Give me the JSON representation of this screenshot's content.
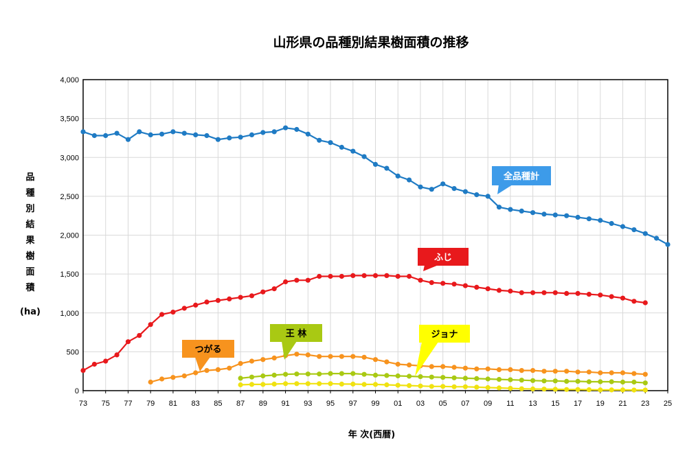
{
  "chart_data": {
    "type": "line",
    "title": "山形県の品種別結果樹面積の推移",
    "xlabel": "年 次(西暦)",
    "ylabel_chars": [
      "品",
      "種",
      "別",
      "結",
      "果",
      "樹",
      "面",
      "積"
    ],
    "ylabel_unit": "(ha)",
    "xlim": [
      1973,
      2025
    ],
    "ylim": [
      0,
      4000
    ],
    "grid": true,
    "x_tick_labels": [
      "73",
      "75",
      "77",
      "79",
      "81",
      "83",
      "85",
      "87",
      "89",
      "91",
      "93",
      "95",
      "97",
      "99",
      "01",
      "03",
      "05",
      "07",
      "09",
      "11",
      "13",
      "15",
      "17",
      "19",
      "21",
      "23",
      "25"
    ],
    "y_tick_labels": [
      "0",
      "500",
      "1,000",
      "1,500",
      "2,000",
      "2,500",
      "3,000",
      "3,500",
      "4,000"
    ],
    "series": [
      {
        "name": "全品種計",
        "color": "#1f7bc4",
        "x": [
          1973,
          1974,
          1975,
          1976,
          1977,
          1978,
          1979,
          1980,
          1981,
          1982,
          1983,
          1984,
          1985,
          1986,
          1987,
          1988,
          1989,
          1990,
          1991,
          1992,
          1993,
          1994,
          1995,
          1996,
          1997,
          1998,
          1999,
          2000,
          2001,
          2002,
          2003,
          2004,
          2005,
          2006,
          2007,
          2008,
          2009,
          2010,
          2011,
          2012,
          2013,
          2014,
          2015,
          2016,
          2017,
          2018,
          2019,
          2020,
          2021,
          2022,
          2023,
          2024,
          2025
        ],
        "values": [
          3330,
          3280,
          3280,
          3310,
          3230,
          3330,
          3290,
          3300,
          3330,
          3310,
          3290,
          3280,
          3230,
          3250,
          3260,
          3290,
          3320,
          3330,
          3380,
          3360,
          3300,
          3220,
          3190,
          3130,
          3080,
          3010,
          2910,
          2860,
          2760,
          2710,
          2620,
          2590,
          2660,
          2600,
          2560,
          2520,
          2500,
          2360,
          2330,
          2310,
          2290,
          2270,
          2260,
          2250,
          2230,
          2210,
          2190,
          2150,
          2110,
          2070,
          2020,
          1960,
          1880
        ]
      },
      {
        "name": "ふじ",
        "color": "#e8191c",
        "x": [
          1973,
          1974,
          1975,
          1976,
          1977,
          1978,
          1979,
          1980,
          1981,
          1982,
          1983,
          1984,
          1985,
          1986,
          1987,
          1988,
          1989,
          1990,
          1991,
          1992,
          1993,
          1994,
          1995,
          1996,
          1997,
          1998,
          1999,
          2000,
          2001,
          2002,
          2003,
          2004,
          2005,
          2006,
          2007,
          2008,
          2009,
          2010,
          2011,
          2012,
          2013,
          2014,
          2015,
          2016,
          2017,
          2018,
          2019,
          2020,
          2021,
          2022,
          2023
        ],
        "values": [
          260,
          340,
          380,
          460,
          630,
          710,
          850,
          980,
          1010,
          1060,
          1100,
          1140,
          1160,
          1180,
          1200,
          1220,
          1270,
          1310,
          1400,
          1420,
          1420,
          1470,
          1470,
          1470,
          1480,
          1480,
          1480,
          1480,
          1470,
          1470,
          1420,
          1390,
          1380,
          1370,
          1350,
          1330,
          1310,
          1290,
          1280,
          1260,
          1260,
          1260,
          1260,
          1250,
          1250,
          1240,
          1230,
          1210,
          1190,
          1150,
          1130
        ]
      },
      {
        "name": "つがる",
        "color": "#f7931e",
        "x": [
          1979,
          1980,
          1981,
          1982,
          1983,
          1984,
          1985,
          1986,
          1987,
          1988,
          1989,
          1990,
          1991,
          1992,
          1993,
          1994,
          1995,
          1996,
          1997,
          1998,
          1999,
          2000,
          2001,
          2002,
          2003,
          2004,
          2005,
          2006,
          2007,
          2008,
          2009,
          2010,
          2011,
          2012,
          2013,
          2014,
          2015,
          2016,
          2017,
          2018,
          2019,
          2020,
          2021,
          2022,
          2023
        ],
        "values": [
          110,
          150,
          170,
          190,
          230,
          260,
          270,
          290,
          350,
          380,
          400,
          420,
          450,
          470,
          460,
          440,
          440,
          440,
          440,
          430,
          400,
          370,
          340,
          330,
          320,
          310,
          310,
          300,
          290,
          280,
          280,
          270,
          270,
          260,
          260,
          250,
          250,
          250,
          240,
          240,
          230,
          230,
          230,
          220,
          210
        ]
      },
      {
        "name": "王 林",
        "color": "#a9c913",
        "x": [
          1987,
          1988,
          1989,
          1990,
          1991,
          1992,
          1993,
          1994,
          1995,
          1996,
          1997,
          1998,
          1999,
          2000,
          2001,
          2002,
          2003,
          2004,
          2005,
          2006,
          2007,
          2008,
          2009,
          2010,
          2011,
          2012,
          2013,
          2014,
          2015,
          2016,
          2017,
          2018,
          2019,
          2020,
          2021,
          2022,
          2023
        ],
        "values": [
          160,
          175,
          190,
          200,
          210,
          215,
          215,
          215,
          220,
          220,
          220,
          210,
          200,
          195,
          190,
          185,
          180,
          175,
          170,
          165,
          160,
          155,
          150,
          145,
          140,
          135,
          130,
          125,
          125,
          120,
          120,
          115,
          115,
          115,
          110,
          110,
          100
        ]
      },
      {
        "name": "ジョナ",
        "color": "#f0e211",
        "x": [
          1987,
          1988,
          1989,
          1990,
          1991,
          1992,
          1993,
          1994,
          1995,
          1996,
          1997,
          1998,
          1999,
          2000,
          2001,
          2002,
          2003,
          2004,
          2005,
          2006,
          2007,
          2008,
          2009,
          2010,
          2011,
          2012,
          2013,
          2014,
          2015,
          2016,
          2017,
          2018,
          2019,
          2020,
          2021,
          2022,
          2023
        ],
        "values": [
          75,
          80,
          80,
          85,
          90,
          90,
          90,
          90,
          90,
          85,
          85,
          80,
          80,
          75,
          70,
          65,
          60,
          55,
          55,
          50,
          50,
          45,
          40,
          35,
          30,
          25,
          22,
          20,
          18,
          15,
          15,
          12,
          10,
          10,
          10,
          8,
          8
        ]
      }
    ],
    "callouts": [
      {
        "series": "全品種計",
        "label": "全品種計",
        "bg": "#3d9be9",
        "text_color": "#ffffff"
      },
      {
        "series": "ふじ",
        "label": "ふじ",
        "bg": "#e8191c",
        "text_color": "#ffffff"
      },
      {
        "series": "つがる",
        "label": "つがる",
        "bg": "#f7931e",
        "text_color": "#000000"
      },
      {
        "series": "王 林",
        "label": "王 林",
        "bg": "#a9c913",
        "text_color": "#000000"
      },
      {
        "series": "ジョナ",
        "label": "ジョナ",
        "bg": "#ffff00",
        "text_color": "#000000"
      }
    ]
  }
}
